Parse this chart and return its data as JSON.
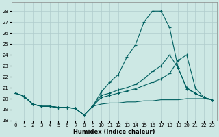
{
  "xlabel": "Humidex (Indice chaleur)",
  "bg_color": "#cde8e4",
  "grid_color": "#b0cccc",
  "line_color": "#006060",
  "xlim": [
    -0.5,
    23.5
  ],
  "ylim": [
    18,
    28.8
  ],
  "xticks": [
    0,
    1,
    2,
    3,
    4,
    5,
    6,
    7,
    8,
    9,
    10,
    11,
    12,
    13,
    14,
    15,
    16,
    17,
    18,
    19,
    20,
    21,
    22,
    23
  ],
  "yticks": [
    18,
    19,
    20,
    21,
    22,
    23,
    24,
    25,
    26,
    27,
    28
  ],
  "line_spike": {
    "x": [
      0,
      1,
      2,
      3,
      4,
      5,
      6,
      7,
      8,
      9,
      10,
      11,
      12,
      13,
      14,
      15,
      16,
      17,
      18,
      19,
      20,
      21,
      22,
      23
    ],
    "y": [
      20.5,
      20.2,
      19.5,
      19.3,
      19.3,
      19.2,
      19.2,
      19.1,
      18.5,
      19.3,
      20.6,
      21.5,
      22.2,
      23.8,
      24.9,
      27.0,
      28.0,
      28.0,
      26.5,
      22.8,
      20.9,
      20.5,
      20.1,
      19.9
    ],
    "marker": true
  },
  "line_mid_high": {
    "x": [
      0,
      1,
      2,
      3,
      4,
      5,
      6,
      7,
      8,
      9,
      10,
      11,
      12,
      13,
      14,
      15,
      16,
      17,
      18,
      19,
      20,
      21,
      22,
      23
    ],
    "y": [
      20.5,
      20.2,
      19.5,
      19.3,
      19.3,
      19.2,
      19.2,
      19.1,
      18.5,
      19.3,
      20.3,
      20.5,
      20.8,
      21.0,
      21.3,
      21.8,
      22.5,
      23.0,
      24.0,
      22.8,
      21.0,
      20.5,
      20.1,
      19.9
    ],
    "marker": true
  },
  "line_mid_low": {
    "x": [
      0,
      1,
      2,
      3,
      4,
      5,
      6,
      7,
      8,
      9,
      10,
      11,
      12,
      13,
      14,
      15,
      16,
      17,
      18,
      19,
      20,
      21,
      22,
      23
    ],
    "y": [
      20.5,
      20.2,
      19.5,
      19.3,
      19.3,
      19.2,
      19.2,
      19.1,
      18.5,
      19.3,
      20.1,
      20.3,
      20.5,
      20.7,
      20.9,
      21.2,
      21.5,
      21.8,
      22.3,
      23.5,
      24.0,
      21.0,
      20.1,
      19.9
    ],
    "marker": true
  },
  "line_flat": {
    "x": [
      0,
      1,
      2,
      3,
      4,
      5,
      6,
      7,
      8,
      9,
      10,
      11,
      12,
      13,
      14,
      15,
      16,
      17,
      18,
      19,
      20,
      21,
      22,
      23
    ],
    "y": [
      20.5,
      20.2,
      19.5,
      19.3,
      19.3,
      19.2,
      19.2,
      19.1,
      18.5,
      19.3,
      19.5,
      19.6,
      19.6,
      19.7,
      19.7,
      19.8,
      19.8,
      19.9,
      19.9,
      19.9,
      20.0,
      20.0,
      20.0,
      19.9
    ],
    "marker": false
  }
}
